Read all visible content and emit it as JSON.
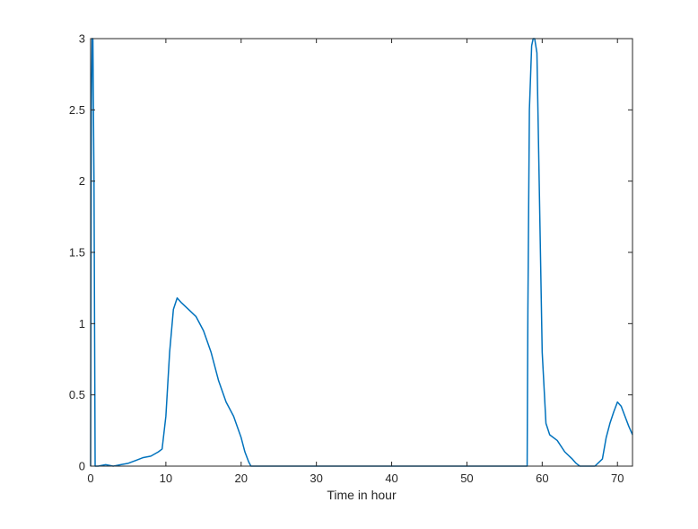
{
  "chart_data": {
    "type": "line",
    "title": "",
    "xlabel": "Time in hour",
    "ylabel": "",
    "xlim": [
      0,
      72
    ],
    "ylim": [
      0,
      3
    ],
    "xticks": [
      0,
      10,
      20,
      30,
      40,
      50,
      60,
      70
    ],
    "yticks": [
      0,
      0.5,
      1,
      1.5,
      2,
      2.5,
      3
    ],
    "xtick_labels": [
      "0",
      "10",
      "20",
      "30",
      "40",
      "50",
      "60",
      "70"
    ],
    "ytick_labels": [
      "0",
      "0.5",
      "1",
      "1.5",
      "2",
      "2.5",
      "3"
    ],
    "grid": false,
    "legend": "none",
    "series": [
      {
        "color": "#0072BD",
        "x": [
          0,
          0.1,
          0.2,
          0.3,
          0.45,
          0.6,
          1,
          2,
          3,
          4,
          5,
          6,
          7,
          8,
          9,
          9.5,
          10,
          10.5,
          11,
          11.5,
          12,
          13,
          14,
          15,
          16,
          17,
          18,
          19,
          20,
          20.5,
          21,
          21.3,
          22,
          30,
          40,
          50,
          58,
          58.1,
          58.3,
          58.6,
          58.8,
          59,
          59.3,
          59.6,
          60,
          60.5,
          61,
          62,
          63,
          64,
          64.5,
          65,
          67,
          68,
          68.5,
          69,
          69.5,
          70,
          70.5,
          71,
          71.5,
          72
        ],
        "y": [
          0,
          2.5,
          3,
          3,
          2.0,
          0,
          0,
          0.01,
          0,
          0.01,
          0.02,
          0.04,
          0.06,
          0.07,
          0.1,
          0.12,
          0.35,
          0.8,
          1.1,
          1.18,
          1.15,
          1.1,
          1.05,
          0.95,
          0.8,
          0.6,
          0.45,
          0.35,
          0.2,
          0.1,
          0.03,
          0,
          0,
          0,
          0,
          0,
          0,
          1.1,
          2.5,
          2.95,
          3,
          3,
          2.9,
          2.0,
          0.8,
          0.3,
          0.22,
          0.18,
          0.1,
          0.05,
          0.02,
          0,
          0,
          0.05,
          0.2,
          0.3,
          0.38,
          0.45,
          0.42,
          0.35,
          0.28,
          0.22
        ]
      }
    ]
  }
}
